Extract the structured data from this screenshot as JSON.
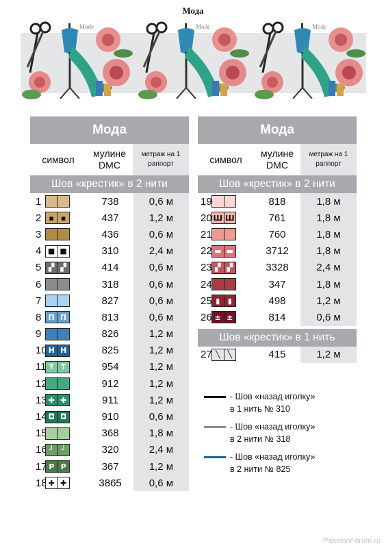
{
  "page_title": "Мода",
  "banner": {
    "logo_text": "Mode"
  },
  "columns": {
    "symbol": "символ",
    "dmc": "мулине DMC",
    "meters": "метраж на 1 раппорт"
  },
  "left_table": {
    "title": "Мода",
    "section": "Шов «крестик» в 2 нити",
    "rows": [
      {
        "n": "1",
        "dmc": "738",
        "len": "0,6 м",
        "color": "#d9b98a",
        "glyph": ""
      },
      {
        "n": "2",
        "dmc": "437",
        "len": "1,2 м",
        "color": "#c9a468",
        "glyph": "▪"
      },
      {
        "n": "3",
        "dmc": "436",
        "len": "0,6 м",
        "color": "#b08b48",
        "glyph": ""
      },
      {
        "n": "4",
        "dmc": "310",
        "len": "2,4 м",
        "color": "#ffffff",
        "glyph": "■"
      },
      {
        "n": "5",
        "dmc": "414",
        "len": "0,6 м",
        "color": "#6e6e6e",
        "glyph": "▞"
      },
      {
        "n": "6",
        "dmc": "318",
        "len": "0,6 м",
        "color": "#8a8c8e",
        "glyph": ""
      },
      {
        "n": "7",
        "dmc": "827",
        "len": "0,6 м",
        "color": "#a8d4ef",
        "glyph": ""
      },
      {
        "n": "8",
        "dmc": "813",
        "len": "0,6 м",
        "color": "#6aa0cc",
        "glyph": "Π"
      },
      {
        "n": "9",
        "dmc": "826",
        "len": "1,2 м",
        "color": "#3f80b8",
        "glyph": ""
      },
      {
        "n": "10",
        "dmc": "825",
        "len": "1,2 м",
        "color": "#1f6494",
        "glyph": "H"
      },
      {
        "n": "11",
        "dmc": "954",
        "len": "1,2 м",
        "color": "#7fc8a2",
        "glyph": "T"
      },
      {
        "n": "12",
        "dmc": "912",
        "len": "1,2 м",
        "color": "#45a880",
        "glyph": ""
      },
      {
        "n": "13",
        "dmc": "911",
        "len": "1,2 м",
        "color": "#2e9068",
        "glyph": "✚"
      },
      {
        "n": "14",
        "dmc": "910",
        "len": "0,6 м",
        "color": "#1f7a55",
        "glyph": "◘"
      },
      {
        "n": "15",
        "dmc": "368",
        "len": "1,8 м",
        "color": "#a3d09a",
        "glyph": ""
      },
      {
        "n": "16",
        "dmc": "320",
        "len": "2,4 м",
        "color": "#6e9e66",
        "glyph": "┘"
      },
      {
        "n": "17",
        "dmc": "367",
        "len": "1,2 м",
        "color": "#4a7a46",
        "glyph": "P"
      },
      {
        "n": "18",
        "dmc": "3865",
        "len": "0,6 м",
        "color": "#ffffff",
        "glyph": "✚"
      }
    ]
  },
  "right_table": {
    "title": "Мода",
    "section": "Шов «крестик» в 2 нити",
    "rows": [
      {
        "n": "19",
        "dmc": "818",
        "len": "1,8 м",
        "color": "#fbd7d3",
        "glyph": ""
      },
      {
        "n": "20",
        "dmc": "761",
        "len": "1,8 м",
        "color": "#f5b5ad",
        "glyph": "Ш"
      },
      {
        "n": "21",
        "dmc": "760",
        "len": "1,8 м",
        "color": "#ee9a92",
        "glyph": ""
      },
      {
        "n": "22",
        "dmc": "3712",
        "len": "1,8 м",
        "color": "#d8767a",
        "glyph": "▬"
      },
      {
        "n": "23",
        "dmc": "3328",
        "len": "2,4 м",
        "color": "#c05a5e",
        "glyph": "▞"
      },
      {
        "n": "24",
        "dmc": "347",
        "len": "1,8 м",
        "color": "#a83e44",
        "glyph": ""
      },
      {
        "n": "25",
        "dmc": "498",
        "len": "1,2 м",
        "color": "#8e2630",
        "glyph": "▮"
      },
      {
        "n": "26",
        "dmc": "814",
        "len": "0,6 м",
        "color": "#6e1526",
        "glyph": "±"
      }
    ],
    "section2": "Шов «крестик» в 1 нить",
    "rows2": [
      {
        "n": "27",
        "dmc": "415",
        "len": "1,2 м",
        "color": "#e6e6e6",
        "glyph": "╲"
      }
    ]
  },
  "legend": [
    {
      "line1": "- Шов «назад иголку»",
      "line2": "в 1 нить № 310",
      "color": "#111111"
    },
    {
      "line1": "- Шов «назад иголку»",
      "line2": "в 2 нити № 318",
      "color": "#8a8c8e"
    },
    {
      "line1": "- Шов «назад иголку»",
      "line2": "в 2 нити № 825",
      "color": "#1f6494"
    }
  ],
  "watermark": "PassionForum.ru"
}
